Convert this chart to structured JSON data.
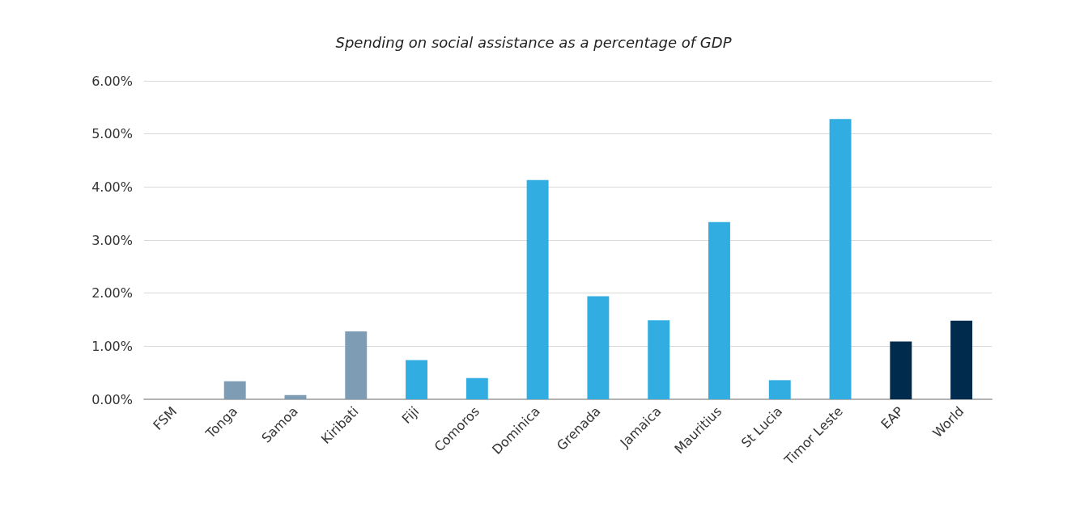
{
  "chart_data": {
    "type": "bar",
    "title": "Spending on social assistance as a percentage of GDP",
    "categories": [
      "FSM",
      "Tonga",
      "Samoa",
      "Kiribati",
      "Fiji",
      "Comoros",
      "Dominica",
      "Grenada",
      "Jamaica",
      "Mauritius",
      "St Lucia",
      "Timor Leste",
      "EAP",
      "World"
    ],
    "values": [
      0,
      0.34,
      0.08,
      1.28,
      0.74,
      0.4,
      4.13,
      1.94,
      1.49,
      3.34,
      0.36,
      5.28,
      1.09,
      1.48
    ],
    "colors": [
      "#7f9cb5",
      "#7f9cb5",
      "#7f9cb5",
      "#7f9cb5",
      "#31ade2",
      "#31ade2",
      "#31ade2",
      "#31ade2",
      "#31ade2",
      "#31ade2",
      "#31ade2",
      "#31ade2",
      "#002b4c",
      "#002b4c"
    ],
    "ylim": [
      0,
      6
    ],
    "yticks": [
      {
        "value": 0,
        "label": "0.00%"
      },
      {
        "value": 1,
        "label": "1.00%"
      },
      {
        "value": 2,
        "label": "2.00%"
      },
      {
        "value": 3,
        "label": "3.00%"
      },
      {
        "value": 4,
        "label": "4.00%"
      },
      {
        "value": 5,
        "label": "5.00%"
      },
      {
        "value": 6,
        "label": "6.00%"
      }
    ],
    "grid": "y"
  }
}
